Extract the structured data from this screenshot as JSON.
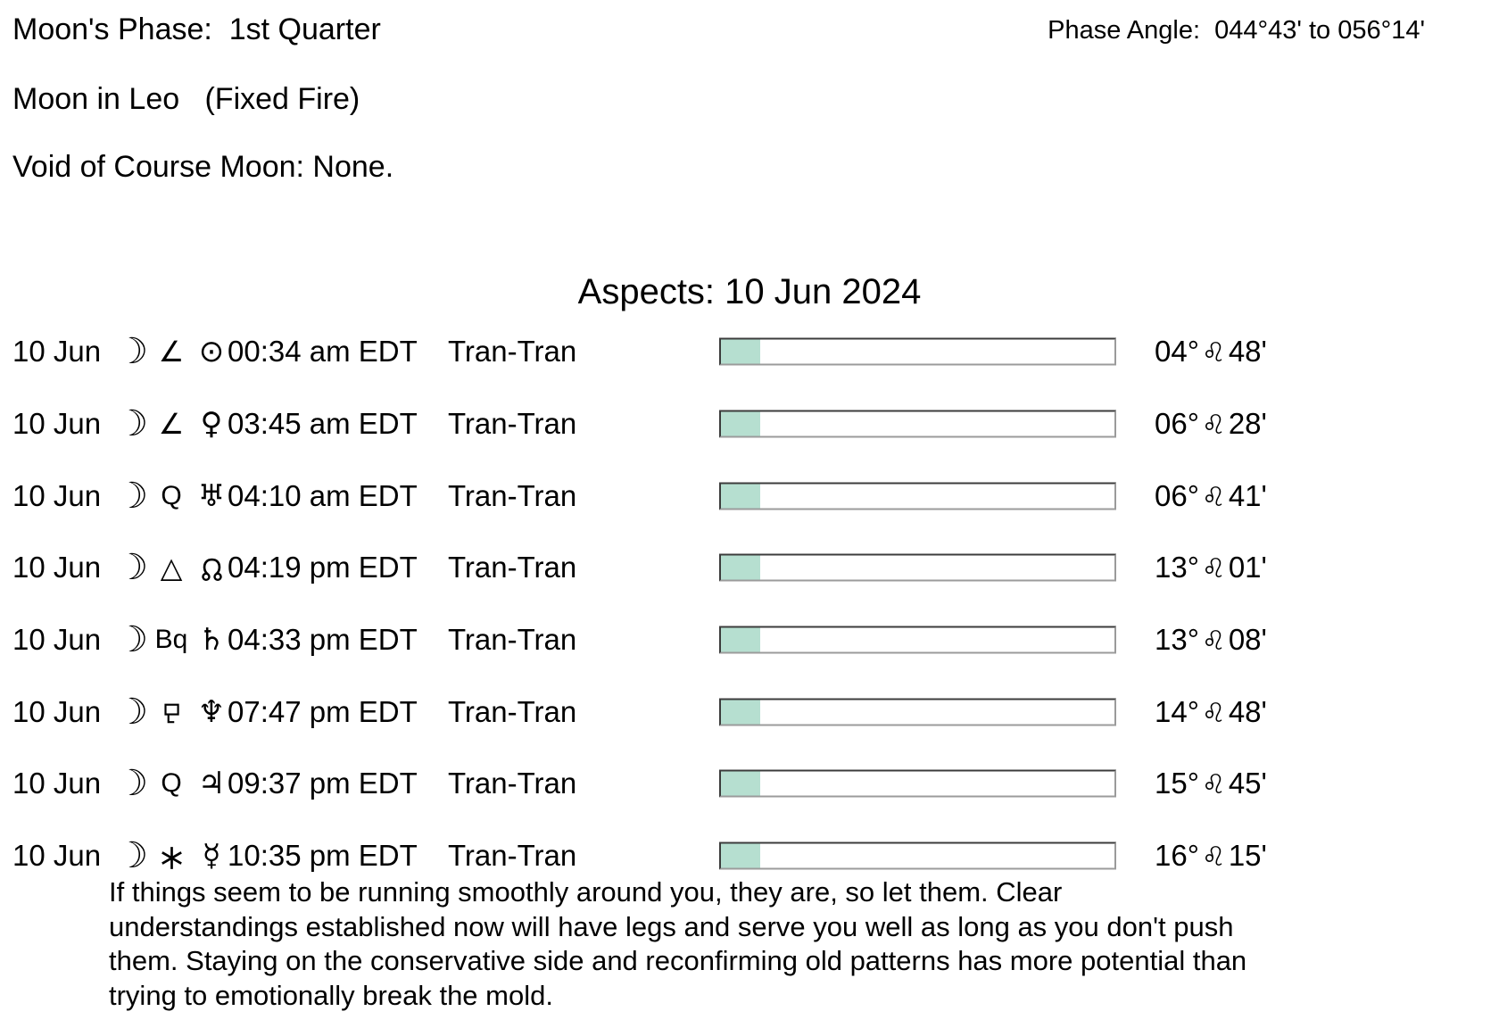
{
  "header": {
    "moons_phase": "Moon's Phase:  1st Quarter",
    "moon_sign": "Moon in Leo   (Fixed Fire)",
    "void_of_course": "Void of Course Moon: None.",
    "phase_angle": "Phase Angle:  044°43' to 056°14'"
  },
  "aspects": {
    "title": "Aspects: 10 Jun 2024",
    "rows": [
      {
        "date": "10 Jun",
        "moon": "moon",
        "moon_glyph": "☽",
        "aspect": "semisquare",
        "aspect_glyph": "∠",
        "planet": "sun",
        "planet_glyph": "⊙",
        "time": "00:34 am EDT",
        "type": "Tran-Tran",
        "progress_pct": 10,
        "degree": "04°",
        "sign": "leo",
        "sign_glyph": "♌",
        "minute": "48'"
      },
      {
        "date": "10 Jun",
        "moon": "moon",
        "moon_glyph": "☽",
        "aspect": "semisquare",
        "aspect_glyph": "∠",
        "planet": "venus",
        "planet_glyph": "♀",
        "time": "03:45 am EDT",
        "type": "Tran-Tran",
        "progress_pct": 10,
        "degree": "06°",
        "sign": "leo",
        "sign_glyph": "♌",
        "minute": "28'"
      },
      {
        "date": "10 Jun",
        "moon": "moon",
        "moon_glyph": "☽",
        "aspect": "quintile",
        "aspect_glyph": "Q",
        "planet": "uranus",
        "planet_glyph": "♅",
        "time": "04:10 am EDT",
        "type": "Tran-Tran",
        "progress_pct": 10,
        "degree": "06°",
        "sign": "leo",
        "sign_glyph": "♌",
        "minute": "41'"
      },
      {
        "date": "10 Jun",
        "moon": "moon",
        "moon_glyph": "☽",
        "aspect": "trine",
        "aspect_glyph": "△",
        "planet": "north-node",
        "planet_glyph": "",
        "time": "04:19 pm EDT",
        "type": "Tran-Tran",
        "progress_pct": 10,
        "degree": "13°",
        "sign": "leo",
        "sign_glyph": "♌",
        "minute": "01'"
      },
      {
        "date": "10 Jun",
        "moon": "moon",
        "moon_glyph": "☽",
        "aspect": "biquintile",
        "aspect_glyph": "Bq",
        "planet": "saturn",
        "planet_glyph": "♄",
        "time": "04:33 pm EDT",
        "type": "Tran-Tran",
        "progress_pct": 10,
        "degree": "13°",
        "sign": "leo",
        "sign_glyph": "♌",
        "minute": "08'"
      },
      {
        "date": "10 Jun",
        "moon": "moon",
        "moon_glyph": "☽",
        "aspect": "sesquiquadrate",
        "aspect_glyph": "",
        "planet": "neptune",
        "planet_glyph": "♆",
        "time": "07:47 pm EDT",
        "type": "Tran-Tran",
        "progress_pct": 10,
        "degree": "14°",
        "sign": "leo",
        "sign_glyph": "♌",
        "minute": "48'"
      },
      {
        "date": "10 Jun",
        "moon": "moon",
        "moon_glyph": "☽",
        "aspect": "quintile",
        "aspect_glyph": "Q",
        "planet": "jupiter",
        "planet_glyph": "♃",
        "time": "09:37 pm EDT",
        "type": "Tran-Tran",
        "progress_pct": 10,
        "degree": "15°",
        "sign": "leo",
        "sign_glyph": "♌",
        "minute": "45'"
      },
      {
        "date": "10 Jun",
        "moon": "moon",
        "moon_glyph": "☽",
        "aspect": "sextile",
        "aspect_glyph": "",
        "planet": "mercury",
        "planet_glyph": "☿",
        "time": "10:35 pm EDT",
        "type": "Tran-Tran",
        "progress_pct": 10,
        "degree": "16°",
        "sign": "leo",
        "sign_glyph": "♌",
        "minute": "15'"
      }
    ]
  },
  "colors": {
    "bar_fill": "#b6dfd0",
    "bar_border_dark": "#3c3c3c",
    "bar_border_light": "#9b9b9b"
  },
  "interpretation": [
    "If things seem to be running smoothly around you, they are, so let them. Clear",
    "understandings established now will have legs and serve you well as long as you don't push",
    "them. Staying on the conservative side and reconfirming old patterns has more potential than",
    "trying to emotionally break the mold."
  ]
}
